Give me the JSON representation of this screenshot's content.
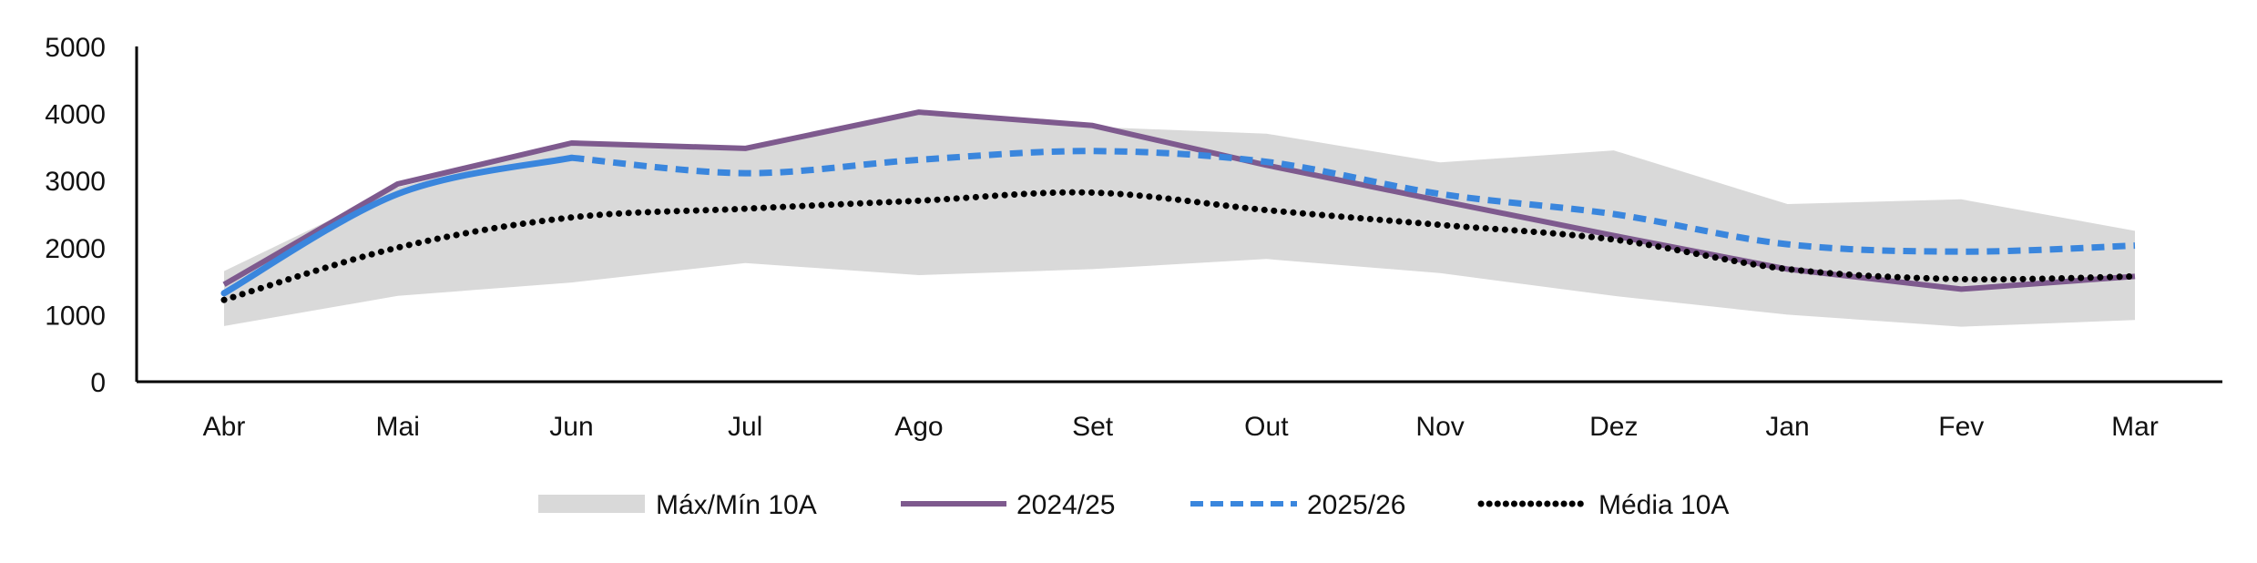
{
  "chart_data": {
    "type": "line",
    "title": "",
    "xlabel": "",
    "ylabel": "",
    "ylim": [
      0,
      5000
    ],
    "yticks": [
      0,
      1000,
      2000,
      3000,
      4000,
      5000
    ],
    "categories": [
      "Abr",
      "Mai",
      "Jun",
      "Jul",
      "Ago",
      "Set",
      "Out",
      "Nov",
      "Dez",
      "Jan",
      "Fev",
      "Mar"
    ],
    "band": {
      "name": "Máx/Mín 10A",
      "color": "#d9d9d9",
      "max": [
        1650,
        2900,
        3550,
        3450,
        3980,
        3800,
        3700,
        3270,
        3450,
        2650,
        2720,
        2250
      ],
      "min": [
        830,
        1280,
        1480,
        1770,
        1590,
        1680,
        1830,
        1620,
        1280,
        1000,
        820,
        920
      ]
    },
    "series": [
      {
        "name": "2024/25",
        "color": "#7e5a8e",
        "style": "solid",
        "smooth": false,
        "values": [
          1450,
          2950,
          3560,
          3480,
          4020,
          3820,
          3230,
          2700,
          2180,
          1680,
          1380,
          1570
        ]
      },
      {
        "name": "2025/26",
        "color": "#3a86dd",
        "style": "solid-then-dashed",
        "solid_until": "Jun",
        "smooth": true,
        "values": [
          1320,
          2800,
          3340,
          3110,
          3310,
          3440,
          3280,
          2800,
          2500,
          2050,
          1940,
          2030
        ]
      },
      {
        "name": "Média 10A",
        "color": "#000000",
        "style": "dotted",
        "smooth": true,
        "values": [
          1220,
          2000,
          2450,
          2580,
          2700,
          2820,
          2560,
          2340,
          2120,
          1680,
          1530,
          1570
        ]
      }
    ],
    "grid": false,
    "legend_position": "bottom"
  }
}
